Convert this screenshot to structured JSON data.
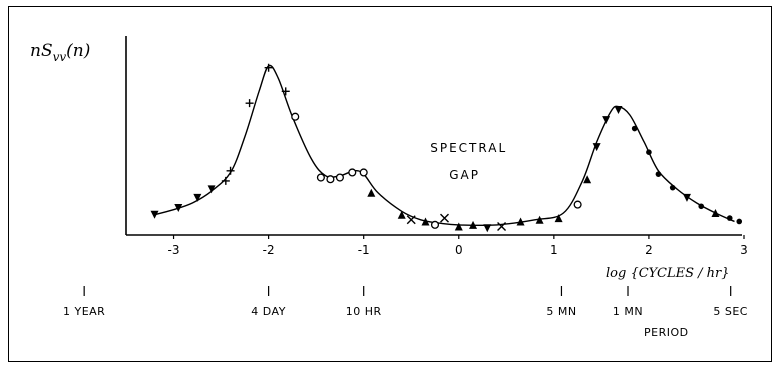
{
  "chart_data": {
    "type": "line",
    "title": "",
    "ylabel": "nS_vv(n)",
    "ylabel_main": "nS",
    "ylabel_sub": "vv",
    "ylabel_arg": "(n)",
    "xlabel": "log {CYCLES / hr}",
    "xlim": [
      -3.5,
      3
    ],
    "ylim": [
      0,
      1
    ],
    "x_ticks": [
      -3,
      -2,
      -1,
      0,
      1,
      2,
      3
    ],
    "x_tick_labels": [
      "-3",
      "-2",
      "-1",
      "0",
      "1",
      "2",
      "3"
    ],
    "period_axis_label": "PERIOD",
    "period_ticks": [
      {
        "x": -3.94,
        "label": "1 YEAR"
      },
      {
        "x": -2.0,
        "label": "4 DAY"
      },
      {
        "x": -1.0,
        "label": "10 HR"
      },
      {
        "x": 1.08,
        "label": "5 MN"
      },
      {
        "x": 1.78,
        "label": "1 MN"
      },
      {
        "x": 2.86,
        "label": "5 SEC"
      }
    ],
    "annotations": [
      {
        "text": "SPECTRAL",
        "x": -0.3,
        "y": 0.49
      },
      {
        "text": "GAP",
        "x": -0.1,
        "y": 0.33
      }
    ],
    "series": [
      {
        "curve": [
          [
            -3.2,
            0.12
          ],
          [
            -3.0,
            0.15
          ],
          [
            -2.8,
            0.19
          ],
          [
            -2.6,
            0.26
          ],
          [
            -2.4,
            0.37
          ],
          [
            -2.25,
            0.58
          ],
          [
            -2.1,
            0.85
          ],
          [
            -2.0,
            1.0
          ],
          [
            -1.9,
            0.93
          ],
          [
            -1.75,
            0.7
          ],
          [
            -1.55,
            0.45
          ],
          [
            -1.4,
            0.35
          ],
          [
            -1.25,
            0.35
          ],
          [
            -1.1,
            0.38
          ],
          [
            -1.0,
            0.36
          ],
          [
            -0.85,
            0.25
          ],
          [
            -0.6,
            0.14
          ],
          [
            -0.4,
            0.09
          ],
          [
            -0.2,
            0.07
          ],
          [
            0.0,
            0.06
          ],
          [
            0.4,
            0.06
          ],
          [
            0.8,
            0.09
          ],
          [
            1.1,
            0.13
          ],
          [
            1.3,
            0.32
          ],
          [
            1.45,
            0.55
          ],
          [
            1.6,
            0.73
          ],
          [
            1.68,
            0.76
          ],
          [
            1.8,
            0.71
          ],
          [
            1.95,
            0.55
          ],
          [
            2.1,
            0.38
          ],
          [
            2.3,
            0.27
          ],
          [
            2.5,
            0.19
          ],
          [
            2.7,
            0.13
          ],
          [
            2.9,
            0.08
          ]
        ],
        "points": [
          {
            "x": -3.2,
            "y": 0.12,
            "m": "tri-down"
          },
          {
            "x": -2.95,
            "y": 0.16,
            "m": "tri-down"
          },
          {
            "x": -2.75,
            "y": 0.22,
            "m": "tri-down"
          },
          {
            "x": -2.6,
            "y": 0.27,
            "m": "tri-down"
          },
          {
            "x": -2.45,
            "y": 0.32,
            "m": "plus"
          },
          {
            "x": -2.4,
            "y": 0.38,
            "m": "plus"
          },
          {
            "x": -2.2,
            "y": 0.78,
            "m": "plus"
          },
          {
            "x": -2.0,
            "y": 0.99,
            "m": "plus"
          },
          {
            "x": -1.82,
            "y": 0.85,
            "m": "plus"
          },
          {
            "x": -1.72,
            "y": 0.7,
            "m": "circle"
          },
          {
            "x": -1.45,
            "y": 0.34,
            "m": "circle"
          },
          {
            "x": -1.35,
            "y": 0.33,
            "m": "circle"
          },
          {
            "x": -1.25,
            "y": 0.34,
            "m": "circle"
          },
          {
            "x": -1.12,
            "y": 0.37,
            "m": "circle"
          },
          {
            "x": -1.0,
            "y": 0.37,
            "m": "circle"
          },
          {
            "x": -0.92,
            "y": 0.25,
            "m": "tri-up"
          },
          {
            "x": -0.6,
            "y": 0.12,
            "m": "tri-up"
          },
          {
            "x": -0.5,
            "y": 0.09,
            "m": "cross"
          },
          {
            "x": -0.35,
            "y": 0.08,
            "m": "tri-up"
          },
          {
            "x": -0.25,
            "y": 0.06,
            "m": "circle"
          },
          {
            "x": -0.15,
            "y": 0.1,
            "m": "cross"
          },
          {
            "x": 0.0,
            "y": 0.05,
            "m": "tri-up"
          },
          {
            "x": 0.15,
            "y": 0.06,
            "m": "tri-up"
          },
          {
            "x": 0.3,
            "y": 0.04,
            "m": "tri-down"
          },
          {
            "x": 0.45,
            "y": 0.05,
            "m": "cross"
          },
          {
            "x": 0.65,
            "y": 0.08,
            "m": "tri-up"
          },
          {
            "x": 0.85,
            "y": 0.09,
            "m": "tri-up"
          },
          {
            "x": 1.05,
            "y": 0.1,
            "m": "tri-up"
          },
          {
            "x": 1.25,
            "y": 0.18,
            "m": "circle"
          },
          {
            "x": 1.35,
            "y": 0.33,
            "m": "tri-up"
          },
          {
            "x": 1.45,
            "y": 0.52,
            "m": "tri-down"
          },
          {
            "x": 1.55,
            "y": 0.68,
            "m": "tri-down"
          },
          {
            "x": 1.68,
            "y": 0.74,
            "m": "tri-down"
          },
          {
            "x": 1.85,
            "y": 0.63,
            "m": "dot"
          },
          {
            "x": 2.0,
            "y": 0.49,
            "m": "dot"
          },
          {
            "x": 2.1,
            "y": 0.36,
            "m": "dot"
          },
          {
            "x": 2.25,
            "y": 0.28,
            "m": "dot"
          },
          {
            "x": 2.4,
            "y": 0.22,
            "m": "tri-down"
          },
          {
            "x": 2.55,
            "y": 0.17,
            "m": "dot"
          },
          {
            "x": 2.7,
            "y": 0.13,
            "m": "tri-up"
          },
          {
            "x": 2.85,
            "y": 0.1,
            "m": "dot"
          },
          {
            "x": 2.95,
            "y": 0.08,
            "m": "dot"
          }
        ]
      }
    ],
    "grid": false,
    "legend": "none"
  }
}
